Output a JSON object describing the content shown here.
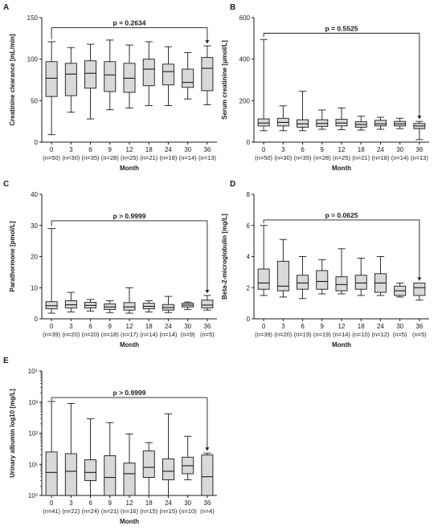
{
  "style": {
    "box_fill": "#d9d9d9",
    "stroke": "#1a1a1a",
    "background": "#ffffff"
  },
  "chart_data": [
    {
      "panel": "A",
      "type": "box",
      "ylabel": "Creatinine clearance [mL/min]",
      "xlabel": "Month",
      "scale": "linear",
      "ylim": [
        0,
        150
      ],
      "yticks": [
        0,
        50,
        100,
        150
      ],
      "grid": false,
      "categories": [
        "0",
        "3",
        "6",
        "9",
        "12",
        "18",
        "24",
        "30",
        "36"
      ],
      "n_labels": [
        "(n=50)",
        "(n=30)",
        "(n=35)",
        "(n=28)",
        "(n=25)",
        "(n=21)",
        "(n=18)",
        "(n=14)",
        "(n=13)"
      ],
      "boxes": [
        {
          "min": 9,
          "q1": 55,
          "median": 77,
          "q3": 97,
          "max": 121
        },
        {
          "min": 36,
          "q1": 56,
          "median": 82,
          "q3": 95,
          "max": 114
        },
        {
          "min": 28,
          "q1": 65,
          "median": 83,
          "q3": 98,
          "max": 118
        },
        {
          "min": 39,
          "q1": 61,
          "median": 81,
          "q3": 97,
          "max": 123
        },
        {
          "min": 41,
          "q1": 60,
          "median": 77,
          "q3": 95,
          "max": 117
        },
        {
          "min": 44,
          "q1": 68,
          "median": 88,
          "q3": 100,
          "max": 121
        },
        {
          "min": 44,
          "q1": 69,
          "median": 85,
          "q3": 94,
          "max": 115
        },
        {
          "min": 52,
          "q1": 66,
          "median": 72,
          "q3": 88,
          "max": 108
        },
        {
          "min": 45,
          "q1": 62,
          "median": 89,
          "q3": 102,
          "max": 116
        }
      ],
      "bracket": {
        "label": "p = 0.2634",
        "from": 0,
        "to": 8,
        "y": 138
      }
    },
    {
      "panel": "B",
      "type": "box",
      "ylabel": "Serum creatinine [μmol/L]",
      "xlabel": "Month",
      "scale": "linear",
      "ylim": [
        0,
        600
      ],
      "yticks": [
        0,
        200,
        400,
        600
      ],
      "grid": false,
      "categories": [
        "0",
        "3",
        "6",
        "9",
        "12",
        "18",
        "24",
        "30",
        "36"
      ],
      "n_labels": [
        "(n=50)",
        "(n=30)",
        "(n=35)",
        "(n=28)",
        "(n=25)",
        "(n=21)",
        "(n=18)",
        "(n=14)",
        "(n=13)"
      ],
      "boxes": [
        {
          "min": 55,
          "q1": 78,
          "median": 92,
          "q3": 112,
          "max": 495
        },
        {
          "min": 55,
          "q1": 78,
          "median": 95,
          "q3": 115,
          "max": 175
        },
        {
          "min": 55,
          "q1": 72,
          "median": 88,
          "q3": 108,
          "max": 245
        },
        {
          "min": 62,
          "q1": 76,
          "median": 90,
          "q3": 108,
          "max": 155
        },
        {
          "min": 60,
          "q1": 78,
          "median": 92,
          "q3": 110,
          "max": 165
        },
        {
          "min": 58,
          "q1": 72,
          "median": 85,
          "q3": 98,
          "max": 125
        },
        {
          "min": 62,
          "q1": 78,
          "median": 88,
          "q3": 105,
          "max": 120
        },
        {
          "min": 65,
          "q1": 78,
          "median": 88,
          "q3": 100,
          "max": 115
        },
        {
          "min": 12,
          "q1": 65,
          "median": 78,
          "q3": 90,
          "max": 100
        }
      ],
      "bracket": {
        "label": "p = 0.5525",
        "from": 0,
        "to": 8,
        "y": 525
      }
    },
    {
      "panel": "C",
      "type": "box",
      "ylabel": "Parathormone [pmol/L]",
      "xlabel": "Month",
      "scale": "linear",
      "ylim": [
        0,
        40
      ],
      "yticks": [
        0,
        10,
        20,
        30,
        40
      ],
      "grid": false,
      "categories": [
        "0",
        "3",
        "6",
        "9",
        "12",
        "18",
        "24",
        "30",
        "36"
      ],
      "n_labels": [
        "(n=39)",
        "(n=20)",
        "(n=20)",
        "(n=18)",
        "(n=17)",
        "(n=14)",
        "(n=14)",
        "(n=9)",
        "(n=5)"
      ],
      "boxes": [
        {
          "min": 1.8,
          "q1": 3.2,
          "median": 4.2,
          "q3": 5.5,
          "max": 29
        },
        {
          "min": 2.2,
          "q1": 3.5,
          "median": 4.5,
          "q3": 5.8,
          "max": 8.5
        },
        {
          "min": 2.5,
          "q1": 3.5,
          "median": 4.3,
          "q3": 5.3,
          "max": 6.2
        },
        {
          "min": 2.0,
          "q1": 3.0,
          "median": 3.8,
          "q3": 4.8,
          "max": 5.8
        },
        {
          "min": 1.8,
          "q1": 2.8,
          "median": 3.8,
          "q3": 5.2,
          "max": 10
        },
        {
          "min": 2.2,
          "q1": 3.2,
          "median": 4.0,
          "q3": 5.0,
          "max": 5.8
        },
        {
          "min": 2.0,
          "q1": 2.8,
          "median": 3.6,
          "q3": 4.6,
          "max": 7.2
        },
        {
          "min": 3.0,
          "q1": 3.8,
          "median": 4.4,
          "q3": 5.0,
          "max": 5.4
        },
        {
          "min": 2.8,
          "q1": 3.5,
          "median": 4.4,
          "q3": 6.0,
          "max": 7.5
        }
      ],
      "bracket": {
        "label": "p > 0.9999",
        "from": 0,
        "to": 8,
        "y": 31.5
      }
    },
    {
      "panel": "D",
      "type": "box",
      "ylabel": "Beta-2-microglobulin [mg/L]",
      "xlabel": "Month",
      "scale": "linear",
      "ylim": [
        0,
        8
      ],
      "yticks": [
        0,
        2,
        4,
        6,
        8
      ],
      "grid": false,
      "categories": [
        "0",
        "3",
        "6",
        "9",
        "12",
        "18",
        "24",
        "30",
        "36"
      ],
      "n_labels": [
        "(n=39)",
        "(n=20)",
        "(n=19)",
        "(n=19)",
        "(n=14)",
        "(n=10)",
        "(n=12)",
        "(n=5)",
        "(n=5)"
      ],
      "boxes": [
        {
          "min": 1.5,
          "q1": 1.9,
          "median": 2.3,
          "q3": 3.2,
          "max": 6.0
        },
        {
          "min": 1.4,
          "q1": 1.8,
          "median": 2.1,
          "q3": 3.7,
          "max": 5.1
        },
        {
          "min": 1.3,
          "q1": 1.9,
          "median": 2.3,
          "q3": 2.8,
          "max": 4.0
        },
        {
          "min": 1.6,
          "q1": 1.9,
          "median": 2.4,
          "q3": 3.1,
          "max": 3.8
        },
        {
          "min": 1.6,
          "q1": 1.8,
          "median": 2.2,
          "q3": 2.7,
          "max": 4.5
        },
        {
          "min": 1.5,
          "q1": 1.9,
          "median": 2.3,
          "q3": 2.8,
          "max": 3.9
        },
        {
          "min": 1.5,
          "q1": 1.7,
          "median": 2.3,
          "q3": 2.9,
          "max": 4.0
        },
        {
          "min": 1.4,
          "q1": 1.5,
          "median": 1.8,
          "q3": 2.1,
          "max": 2.3
        },
        {
          "min": 1.2,
          "q1": 1.5,
          "median": 2.0,
          "q3": 2.3,
          "max": 2.3
        }
      ],
      "bracket": {
        "label": "p = 0.0625",
        "from": 0,
        "to": 8,
        "y": 6.35
      }
    },
    {
      "panel": "E",
      "type": "box",
      "ylabel": "Urinary albumin log10 [mg/L]",
      "xlabel": "Month",
      "scale": "log",
      "ylim": [
        1,
        10000
      ],
      "yticks": [
        1,
        10,
        100,
        1000,
        10000
      ],
      "ytick_labels": [
        "10⁰",
        "10¹",
        "10²",
        "10³",
        "10⁴"
      ],
      "grid": false,
      "categories": [
        "0",
        "3",
        "6",
        "9",
        "12",
        "18",
        "24",
        "30",
        "36"
      ],
      "n_labels": [
        "(n=41)",
        "(n=22)",
        "(n=24)",
        "(n=21)",
        "(n=16)",
        "(n=15)",
        "(n=15)",
        "(n=10)",
        "(n=4)"
      ],
      "boxes": [
        {
          "min": 1,
          "q1": 1,
          "median": 5.5,
          "q3": 25,
          "max": 1050
        },
        {
          "min": 1,
          "q1": 1,
          "median": 6,
          "q3": 22,
          "max": 900
        },
        {
          "min": 1,
          "q1": 3,
          "median": 5.5,
          "q3": 14,
          "max": 290
        },
        {
          "min": 1,
          "q1": 1,
          "median": 3.8,
          "q3": 19,
          "max": 220
        },
        {
          "min": 1,
          "q1": 1,
          "median": 5,
          "q3": 11,
          "max": 95
        },
        {
          "min": 1,
          "q1": 3.8,
          "median": 8,
          "q3": 27,
          "max": 50
        },
        {
          "min": 1,
          "q1": 3.2,
          "median": 6,
          "q3": 15,
          "max": 420
        },
        {
          "min": 3.2,
          "q1": 5,
          "median": 9,
          "q3": 17,
          "max": 80
        },
        {
          "min": 1,
          "q1": 1,
          "median": 4,
          "q3": 20,
          "max": 23
        }
      ],
      "bracket": {
        "label": "p > 0.9999",
        "from": 0,
        "to": 8,
        "y": 1400
      }
    }
  ]
}
